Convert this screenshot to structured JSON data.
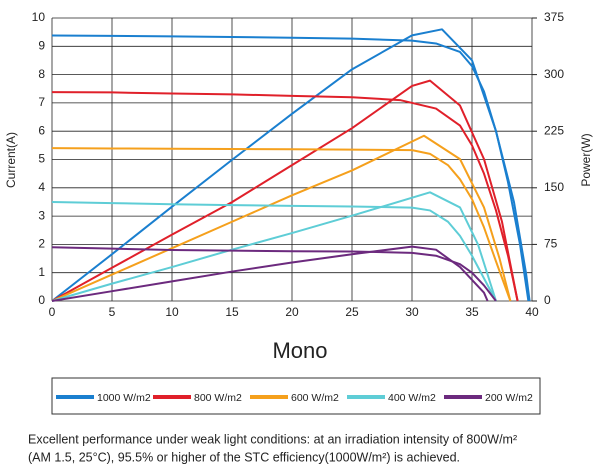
{
  "chart_data": {
    "type": "line",
    "title": "Mono",
    "ylabel": "Current(A)",
    "y2label": "Power(W)",
    "xlim": [
      0,
      40
    ],
    "xticks": [
      0,
      5,
      10,
      15,
      20,
      25,
      30,
      35,
      40
    ],
    "ylim": [
      0,
      10
    ],
    "yticks": [
      0,
      1,
      2,
      3,
      4,
      5,
      6,
      7,
      8,
      9,
      10
    ],
    "y2lim": [
      0,
      375
    ],
    "y2ticks": [
      0,
      75,
      150,
      225,
      300,
      375
    ],
    "grid": true,
    "series": [
      {
        "name": "1000 W/m2",
        "color": "#1a7fcf",
        "x": [
          0,
          5,
          10,
          15,
          20,
          25,
          30,
          32,
          34,
          35,
          36,
          37,
          38,
          39,
          39.7
        ],
        "values": [
          9.38,
          9.37,
          9.35,
          9.33,
          9.3,
          9.27,
          9.2,
          9.1,
          8.8,
          8.3,
          7.4,
          6.0,
          4.2,
          2.0,
          0
        ]
      },
      {
        "color": "#1a7fcf",
        "axis": "y2",
        "x": [
          0,
          5,
          10,
          15,
          20,
          25,
          30,
          32.5,
          35,
          37,
          38.5,
          39.5,
          39.8
        ],
        "values": [
          0,
          62,
          125,
          187,
          248,
          307,
          352,
          360,
          319,
          225,
          131,
          37,
          0
        ]
      },
      {
        "name": "800 W/m2",
        "color": "#e0202a",
        "x": [
          0,
          5,
          10,
          15,
          20,
          25,
          29,
          32,
          34,
          35,
          36,
          37,
          38,
          38.8
        ],
        "values": [
          7.38,
          7.37,
          7.33,
          7.3,
          7.25,
          7.2,
          7.1,
          6.8,
          6.2,
          5.5,
          4.5,
          3.2,
          1.6,
          0
        ]
      },
      {
        "color": "#e0202a",
        "axis": "y2",
        "x": [
          0,
          5,
          10,
          15,
          20,
          25,
          30,
          31.5,
          34,
          36,
          37.5,
          38.8
        ],
        "values": [
          0,
          44,
          88,
          131,
          180,
          229,
          285,
          292,
          259,
          188,
          105,
          0
        ]
      },
      {
        "name": "600 W/m2",
        "color": "#f5a01c",
        "x": [
          0,
          5,
          10,
          15,
          20,
          25,
          30,
          31.5,
          33,
          34,
          35,
          36,
          37,
          38.2
        ],
        "values": [
          5.4,
          5.39,
          5.38,
          5.37,
          5.36,
          5.35,
          5.33,
          5.2,
          4.8,
          4.3,
          3.6,
          2.6,
          1.4,
          0
        ]
      },
      {
        "color": "#f5a01c",
        "axis": "y2",
        "x": [
          0,
          5,
          10,
          15,
          20,
          25,
          31,
          34,
          36,
          37.3,
          38.2
        ],
        "values": [
          0,
          35,
          70,
          105,
          140,
          173,
          219,
          188,
          124,
          56,
          0
        ]
      },
      {
        "name": "400 W/m2",
        "color": "#5ecdd6",
        "x": [
          0,
          5,
          10,
          15,
          20,
          25,
          30,
          31.5,
          33,
          34,
          35,
          36,
          37
        ],
        "values": [
          3.5,
          3.46,
          3.42,
          3.39,
          3.36,
          3.34,
          3.3,
          3.2,
          2.8,
          2.3,
          1.6,
          0.8,
          0
        ]
      },
      {
        "color": "#5ecdd6",
        "axis": "y2",
        "x": [
          0,
          5,
          10,
          15,
          20,
          25,
          31.5,
          34,
          35.5,
          37
        ],
        "values": [
          0,
          23,
          45,
          68,
          90,
          113,
          144,
          124,
          75,
          0
        ]
      },
      {
        "name": "200 W/m2",
        "color": "#6c2a7e",
        "x": [
          0,
          5,
          10,
          15,
          20,
          25,
          30,
          32,
          34,
          35,
          36,
          37
        ],
        "values": [
          1.9,
          1.85,
          1.8,
          1.78,
          1.76,
          1.75,
          1.7,
          1.6,
          1.3,
          1.0,
          0.55,
          0
        ]
      },
      {
        "color": "#6c2a7e",
        "axis": "y2",
        "x": [
          0,
          5,
          10,
          15,
          20,
          25,
          30,
          32,
          34,
          36,
          36.3
        ],
        "values": [
          0,
          13,
          26,
          39,
          51,
          62,
          72,
          68,
          45,
          11,
          0
        ]
      }
    ],
    "note": [
      "Excellent performance under weak light conditions: at an irradiation intensity of 800W/m² ",
      "(AM 1.5, 25°C), 95.5% or higher of the STC efficiency(1000W/m²) is achieved."
    ]
  }
}
